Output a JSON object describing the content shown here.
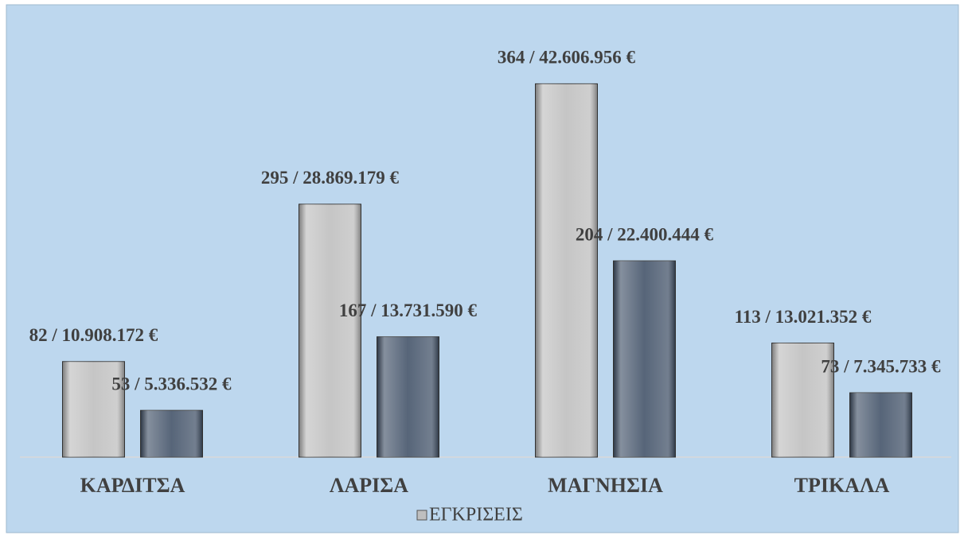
{
  "chart_data": {
    "type": "bar",
    "categories": [
      "ΚΑΡΔΙΤΣΑ",
      "ΛΑΡΙΣΑ",
      "ΜΑΓΝΗΣΙΑ",
      "ΤΡΙΚΑΛΑ"
    ],
    "series": [
      {
        "name": "ΕΓΚΡΙΣΕΙΣ",
        "color": "#bfbfbf",
        "values": [
          10908172,
          28869179,
          42606956,
          13021352
        ],
        "value_labels": [
          "82 / 10.908.172 €",
          "295 / 28.869.179 €",
          "364 / 42.606.956 €",
          "113 / 13.021.352 €"
        ]
      },
      {
        "color": "#44546a",
        "values": [
          5336532,
          13731590,
          22400444,
          7345733
        ],
        "value_labels": [
          "53 / 5.336.532 €",
          "167 / 13.731.590 €",
          "204 / 22.400.444 €",
          "73 / 7.345.733 €"
        ]
      }
    ],
    "ylim": [
      0,
      45000000
    ],
    "legend": "bottom"
  }
}
